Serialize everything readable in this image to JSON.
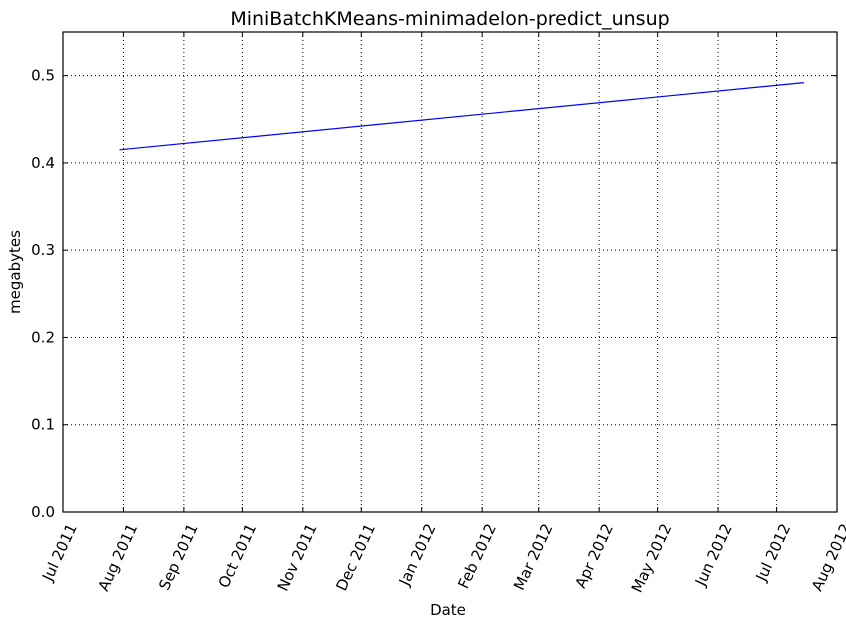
{
  "chart_data": {
    "type": "line",
    "title": "MiniBatchKMeans-minimadelon-predict_unsup",
    "xlabel": "Date",
    "ylabel": "megabytes",
    "x_axis_type": "date",
    "xlim": [
      "2011-07-01",
      "2012-08-01"
    ],
    "ylim": [
      0.0,
      0.55
    ],
    "x_ticks": [
      {
        "date": "2011-07-01",
        "label": "Jul 2011"
      },
      {
        "date": "2011-08-01",
        "label": "Aug 2011"
      },
      {
        "date": "2011-09-01",
        "label": "Sep 2011"
      },
      {
        "date": "2011-10-01",
        "label": "Oct 2011"
      },
      {
        "date": "2011-11-01",
        "label": "Nov 2011"
      },
      {
        "date": "2011-12-01",
        "label": "Dec 2011"
      },
      {
        "date": "2012-01-01",
        "label": "Jan 2012"
      },
      {
        "date": "2012-02-01",
        "label": "Feb 2012"
      },
      {
        "date": "2012-03-01",
        "label": "Mar 2012"
      },
      {
        "date": "2012-04-01",
        "label": "Apr 2012"
      },
      {
        "date": "2012-05-01",
        "label": "May 2012"
      },
      {
        "date": "2012-06-01",
        "label": "Jun 2012"
      },
      {
        "date": "2012-07-01",
        "label": "Jul 2012"
      },
      {
        "date": "2012-08-01",
        "label": "Aug 2012"
      }
    ],
    "y_ticks": [
      {
        "value": 0.0,
        "label": "0.0"
      },
      {
        "value": 0.1,
        "label": "0.1"
      },
      {
        "value": 0.2,
        "label": "0.2"
      },
      {
        "value": 0.3,
        "label": "0.3"
      },
      {
        "value": 0.4,
        "label": "0.4"
      },
      {
        "value": 0.5,
        "label": "0.5"
      }
    ],
    "grid": true,
    "series": [
      {
        "color": "#0000ff",
        "points": [
          {
            "x": "2011-07-30",
            "y": 0.415
          },
          {
            "x": "2012-07-15",
            "y": 0.492
          }
        ]
      }
    ]
  }
}
